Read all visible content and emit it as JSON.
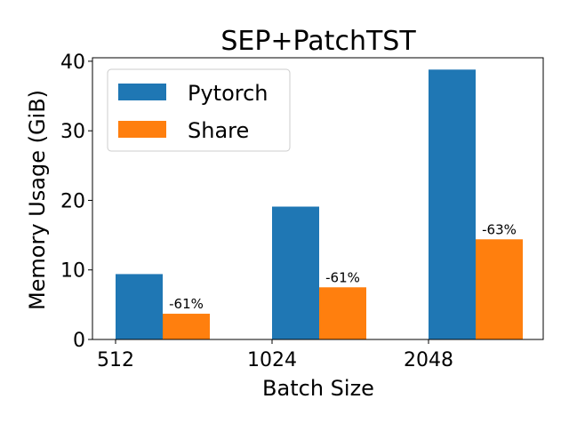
{
  "chart_data": {
    "type": "bar",
    "title": "SEP+PatchTST",
    "xlabel": "Batch Size",
    "ylabel": "Memory Usage (GiB)",
    "categories": [
      "512",
      "1024",
      "2048"
    ],
    "ylim": [
      0,
      40.5
    ],
    "yticks": [
      0,
      10,
      20,
      30,
      40
    ],
    "series": [
      {
        "name": "Pytorch",
        "color": "#1f77b4",
        "values": [
          9.4,
          19.1,
          38.8
        ]
      },
      {
        "name": "Share",
        "color": "#ff7f0e",
        "values": [
          3.7,
          7.5,
          14.4
        ]
      }
    ],
    "annotations": [
      "-61%",
      "-61%",
      "-63%"
    ],
    "legend_position": "top-left",
    "grid": false
  }
}
